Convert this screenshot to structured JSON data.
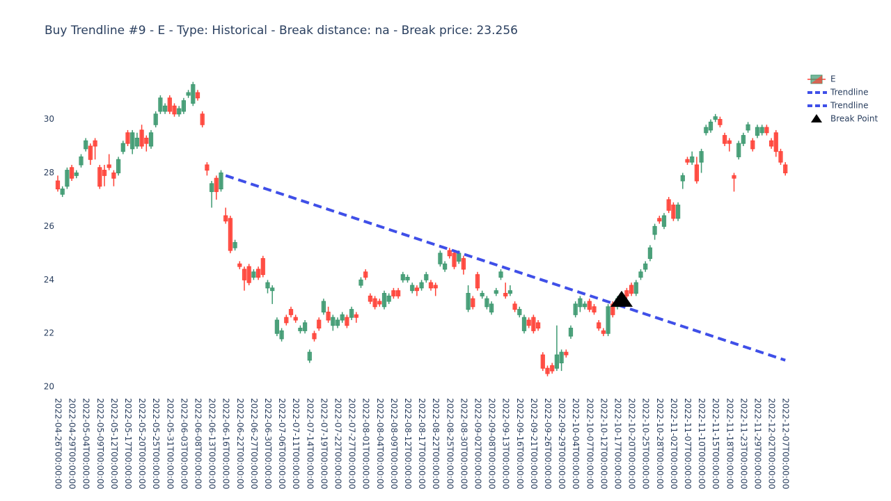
{
  "chart_data": {
    "type": "candlestick",
    "title": "Buy Trendline #9 - E - Type: Historical - Break distance: na - Break price: 23.256",
    "categories": [
      "2022-04-26T00:00:00",
      null,
      null,
      "2022-04-29T00:00:00",
      null,
      null,
      "2022-05-04T00:00:00",
      null,
      null,
      "2022-05-09T00:00:00",
      null,
      null,
      "2022-05-12T00:00:00",
      null,
      null,
      "2022-05-17T00:00:00",
      null,
      null,
      "2022-05-20T00:00:00",
      null,
      null,
      "2022-05-25T00:00:00",
      null,
      null,
      "2022-05-31T00:00:00",
      null,
      null,
      "2022-06-03T00:00:00",
      null,
      null,
      "2022-06-08T00:00:00",
      null,
      null,
      "2022-06-13T00:00:00",
      null,
      null,
      "2022-06-16T00:00:00",
      null,
      null,
      "2022-06-22T00:00:00",
      null,
      null,
      "2022-06-27T00:00:00",
      null,
      null,
      "2022-06-30T00:00:00",
      null,
      null,
      "2022-07-06T00:00:00",
      null,
      null,
      "2022-07-11T00:00:00",
      null,
      null,
      "2022-07-14T00:00:00",
      null,
      null,
      "2022-07-19T00:00:00",
      null,
      null,
      "2022-07-22T00:00:00",
      null,
      null,
      "2022-07-27T00:00:00",
      null,
      null,
      "2022-08-01T00:00:00",
      null,
      null,
      "2022-08-04T00:00:00",
      null,
      null,
      "2022-08-09T00:00:00",
      null,
      null,
      "2022-08-12T00:00:00",
      null,
      null,
      "2022-08-17T00:00:00",
      null,
      null,
      "2022-08-22T00:00:00",
      null,
      null,
      "2022-08-25T00:00:00",
      null,
      null,
      "2022-08-30T00:00:00",
      null,
      null,
      "2022-09-02T00:00:00",
      null,
      null,
      "2022-09-08T00:00:00",
      null,
      null,
      "2022-09-13T00:00:00",
      null,
      null,
      "2022-09-16T00:00:00",
      null,
      null,
      "2022-09-21T00:00:00",
      null,
      null,
      "2022-09-26T00:00:00",
      null,
      null,
      "2022-09-29T00:00:00",
      null,
      null,
      "2022-10-04T00:00:00",
      null,
      null,
      "2022-10-07T00:00:00",
      null,
      null,
      "2022-10-12T00:00:00",
      null,
      null,
      "2022-10-17T00:00:00",
      null,
      null,
      "2022-10-20T00:00:00",
      null,
      null,
      "2022-10-25T00:00:00",
      null,
      null,
      "2022-10-28T00:00:00",
      null,
      null,
      "2022-11-02T00:00:00",
      null,
      null,
      "2022-11-07T00:00:00",
      null,
      null,
      "2022-11-10T00:00:00",
      null,
      null,
      "2022-11-15T00:00:00",
      null,
      null,
      "2022-11-18T00:00:00",
      null,
      null,
      "2022-11-23T00:00:00",
      null,
      null,
      "2022-11-29T00:00:00",
      null,
      null,
      "2022-12-02T00:00:00",
      null,
      null,
      "2022-12-07T00:00:00"
    ],
    "series": [
      {
        "name": "E",
        "type": "candlestick",
        "increasing_color": "#3D9970",
        "decreasing_color": "#FF4136",
        "open": [
          27.7,
          27.2,
          27.5,
          28.2,
          27.9,
          28.3,
          28.9,
          29.0,
          29.2,
          28.2,
          28.1,
          28.3,
          28.0,
          28.0,
          28.8,
          29.5,
          28.9,
          29.0,
          29.6,
          29.3,
          29.0,
          29.8,
          30.3,
          30.3,
          30.8,
          30.5,
          30.2,
          30.3,
          30.9,
          30.6,
          31.0,
          30.2,
          28.3,
          27.3,
          27.8,
          27.4,
          26.4,
          26.3,
          25.2,
          24.6,
          24.4,
          24.5,
          24.1,
          24.4,
          24.8,
          23.7,
          23.6,
          22.0,
          21.8,
          22.6,
          22.9,
          22.6,
          22.1,
          22.1,
          21.0,
          22.0,
          22.5,
          22.8,
          22.8,
          22.3,
          22.3,
          22.5,
          22.6,
          22.6,
          22.7,
          23.8,
          24.3,
          23.4,
          23.3,
          23.2,
          23.0,
          23.2,
          23.6,
          23.6,
          24.0,
          24.0,
          23.6,
          23.7,
          23.7,
          24.0,
          23.9,
          23.8,
          24.6,
          24.4,
          25.1,
          25.0,
          24.7,
          24.8,
          22.9,
          23.3,
          24.2,
          23.4,
          23.0,
          22.8,
          23.5,
          24.1,
          23.5,
          23.5,
          23.1,
          22.7,
          22.1,
          22.5,
          22.6,
          22.4,
          21.2,
          20.7,
          20.8,
          20.7,
          20.9,
          21.3,
          21.9,
          22.7,
          23.0,
          23.0,
          23.2,
          23.0,
          22.4,
          22.1,
          22.0,
          23.1,
          23.0,
          23.3,
          23.6,
          23.8,
          23.5,
          24.1,
          24.4,
          24.8,
          25.7,
          26.3,
          26.0,
          27.0,
          26.8,
          26.3,
          27.7,
          28.5,
          28.4,
          28.3,
          28.4,
          29.5,
          29.6,
          30.0,
          30.0,
          29.4,
          29.2,
          27.9,
          28.6,
          29.1,
          29.6,
          29.2,
          29.4,
          29.5,
          29.7,
          29.2,
          29.5,
          28.8,
          28.3
        ],
        "high": [
          27.9,
          27.5,
          28.2,
          28.3,
          28.1,
          28.7,
          29.3,
          29.1,
          29.3,
          28.3,
          28.3,
          28.7,
          28.1,
          28.6,
          29.2,
          29.6,
          29.6,
          29.5,
          29.8,
          29.4,
          29.6,
          30.3,
          30.9,
          30.6,
          30.9,
          30.6,
          30.5,
          30.8,
          31.1,
          31.4,
          31.1,
          30.3,
          28.4,
          27.7,
          27.9,
          28.1,
          26.7,
          26.4,
          25.5,
          24.7,
          24.5,
          24.6,
          24.4,
          24.5,
          24.9,
          24.0,
          23.8,
          22.6,
          22.2,
          22.7,
          23.0,
          22.7,
          22.3,
          22.5,
          21.4,
          22.1,
          22.6,
          23.3,
          23.0,
          22.7,
          22.6,
          22.8,
          22.7,
          23.0,
          22.8,
          24.1,
          24.4,
          23.5,
          23.4,
          23.3,
          23.6,
          23.5,
          23.7,
          23.7,
          24.3,
          24.2,
          23.9,
          23.8,
          24.0,
          24.3,
          24.0,
          23.9,
          25.1,
          24.7,
          25.2,
          25.1,
          25.1,
          24.9,
          23.8,
          23.4,
          24.3,
          23.6,
          23.4,
          23.2,
          23.7,
          24.4,
          23.9,
          23.8,
          23.2,
          23.0,
          22.7,
          22.6,
          22.7,
          22.5,
          21.3,
          20.8,
          20.9,
          22.3,
          21.4,
          21.4,
          22.3,
          23.2,
          23.4,
          23.2,
          23.3,
          23.1,
          22.5,
          22.2,
          23.1,
          23.2,
          23.4,
          23.4,
          23.7,
          23.9,
          24.0,
          24.4,
          24.7,
          25.3,
          26.1,
          26.4,
          26.5,
          27.1,
          26.9,
          26.9,
          28.0,
          28.6,
          28.8,
          28.6,
          28.9,
          29.8,
          30.0,
          30.2,
          30.1,
          29.5,
          29.3,
          28.0,
          29.2,
          29.5,
          29.9,
          29.3,
          29.8,
          29.8,
          29.8,
          29.3,
          29.6,
          28.9,
          28.4
        ],
        "low": [
          27.3,
          27.1,
          27.4,
          27.7,
          27.8,
          28.2,
          28.8,
          28.3,
          28.5,
          27.4,
          27.5,
          28.1,
          27.5,
          27.9,
          28.7,
          29.0,
          28.7,
          28.9,
          28.9,
          28.8,
          28.9,
          29.7,
          30.2,
          30.2,
          30.2,
          30.1,
          30.1,
          30.2,
          30.8,
          30.5,
          30.7,
          29.7,
          27.9,
          26.7,
          27.0,
          27.3,
          26.1,
          25.0,
          25.1,
          24.4,
          23.6,
          23.8,
          24.0,
          24.0,
          24.1,
          23.5,
          23.1,
          21.9,
          21.7,
          22.3,
          22.6,
          22.4,
          22.0,
          22.0,
          20.9,
          21.7,
          22.1,
          22.7,
          22.4,
          22.1,
          22.2,
          22.4,
          22.2,
          22.5,
          22.4,
          23.7,
          24.0,
          23.1,
          22.9,
          23.0,
          22.9,
          23.1,
          23.3,
          23.3,
          23.9,
          23.9,
          23.5,
          23.4,
          23.6,
          23.9,
          23.6,
          23.4,
          24.5,
          24.3,
          24.8,
          24.4,
          24.6,
          24.2,
          22.8,
          22.9,
          23.6,
          23.3,
          22.9,
          22.7,
          23.4,
          24.0,
          23.3,
          23.4,
          22.8,
          22.6,
          22.0,
          22.2,
          22.0,
          22.1,
          20.6,
          20.4,
          20.5,
          20.6,
          20.6,
          21.1,
          21.8,
          22.6,
          22.8,
          22.9,
          22.8,
          22.7,
          22.1,
          21.9,
          21.9,
          22.6,
          22.9,
          23.0,
          23.3,
          23.4,
          23.4,
          24.0,
          24.3,
          24.7,
          25.5,
          26.1,
          25.9,
          26.5,
          26.2,
          26.2,
          27.4,
          28.3,
          28.3,
          27.6,
          28.0,
          29.4,
          29.5,
          29.9,
          29.7,
          29.0,
          28.8,
          27.3,
          28.5,
          29.0,
          29.5,
          28.8,
          29.3,
          29.4,
          29.4,
          28.9,
          28.6,
          28.3,
          27.9
        ],
        "close": [
          27.4,
          27.4,
          28.1,
          27.8,
          28.0,
          28.6,
          29.2,
          28.5,
          29.0,
          27.5,
          27.9,
          28.2,
          27.8,
          28.5,
          29.1,
          29.1,
          29.5,
          29.3,
          29.0,
          29.1,
          29.5,
          30.2,
          30.8,
          30.5,
          30.3,
          30.2,
          30.4,
          30.7,
          31.0,
          31.3,
          30.8,
          29.8,
          28.1,
          27.6,
          27.3,
          28.0,
          26.2,
          25.1,
          25.4,
          24.5,
          24.0,
          23.9,
          24.3,
          24.1,
          24.2,
          23.9,
          23.7,
          22.5,
          22.1,
          22.4,
          22.7,
          22.5,
          22.2,
          22.4,
          21.3,
          21.8,
          22.2,
          23.2,
          22.5,
          22.6,
          22.5,
          22.7,
          22.3,
          22.9,
          22.6,
          24.0,
          24.1,
          23.2,
          23.0,
          23.1,
          23.5,
          23.4,
          23.4,
          23.4,
          24.2,
          24.1,
          23.8,
          23.6,
          23.9,
          24.2,
          23.7,
          23.7,
          25.0,
          24.6,
          24.9,
          24.5,
          25.0,
          24.4,
          23.5,
          23.0,
          23.7,
          23.5,
          23.3,
          23.1,
          23.6,
          24.3,
          23.4,
          23.6,
          22.9,
          22.9,
          22.6,
          22.3,
          22.1,
          22.2,
          20.7,
          20.5,
          20.6,
          21.2,
          21.3,
          21.2,
          22.2,
          23.1,
          23.3,
          23.1,
          22.9,
          22.8,
          22.2,
          22.0,
          23.0,
          22.7,
          23.3,
          23.1,
          23.4,
          23.5,
          23.9,
          24.3,
          24.6,
          25.2,
          26.0,
          26.2,
          26.4,
          26.6,
          26.3,
          26.8,
          27.9,
          28.4,
          28.6,
          27.7,
          28.8,
          29.7,
          29.9,
          30.1,
          29.8,
          29.1,
          29.1,
          27.8,
          29.1,
          29.4,
          29.8,
          28.9,
          29.7,
          29.7,
          29.5,
          29.0,
          28.8,
          28.4,
          28.0
        ]
      },
      {
        "name": "Trendline",
        "type": "line",
        "color": "#3f4fe8",
        "dash": true,
        "x": [
          "2022-06-16T00:00:00",
          "2022-10-17T00:00:00"
        ],
        "values": [
          27.9,
          23.07
        ]
      },
      {
        "name": "Trendline",
        "type": "line",
        "color": "#3f4fe8",
        "dash": true,
        "x": [
          "2022-10-17T00:00:00",
          "2022-12-07T00:00:00"
        ],
        "values": [
          23.07,
          21.0
        ]
      },
      {
        "name": "Break Point",
        "type": "scatter",
        "marker": "triangle-up",
        "color": "#000000",
        "x": [
          "2022-10-17T00:00:00"
        ],
        "values": [
          23.256
        ]
      }
    ],
    "ylim": [
      19.9,
      31.86
    ],
    "yticks": [
      20,
      22,
      24,
      26,
      28,
      30
    ],
    "grid": false,
    "legend": "top-right"
  }
}
